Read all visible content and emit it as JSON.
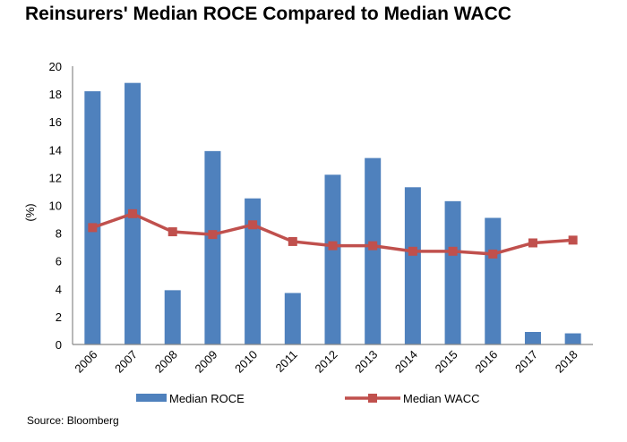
{
  "chart_data": {
    "type": "bar+line",
    "title": "Reinsurers' Median ROCE Compared to Median WACC",
    "xlabel": "",
    "ylabel": "(%)",
    "ylim": [
      0,
      20
    ],
    "yticks": [
      "0",
      "2",
      "4",
      "6",
      "8",
      "10",
      "12",
      "14",
      "16",
      "18",
      "20"
    ],
    "categories": [
      "2006",
      "2007",
      "2008",
      "2009",
      "2010",
      "2011",
      "2012",
      "2013",
      "2014",
      "2015",
      "2016",
      "2017",
      "2018"
    ],
    "series": [
      {
        "name": "Median ROCE",
        "type": "bar",
        "color": "#4F81BD",
        "values": [
          18.2,
          18.8,
          3.9,
          13.9,
          10.5,
          3.7,
          12.2,
          13.4,
          11.3,
          10.3,
          9.1,
          0.9,
          0.8
        ]
      },
      {
        "name": "Median WACC",
        "type": "line",
        "color": "#C0504D",
        "values": [
          8.4,
          9.4,
          8.1,
          7.9,
          8.6,
          7.4,
          7.1,
          7.1,
          6.7,
          6.7,
          6.5,
          7.3,
          7.5
        ]
      }
    ],
    "grid": false,
    "legend": "bottom"
  },
  "source": "Source: Bloomberg"
}
